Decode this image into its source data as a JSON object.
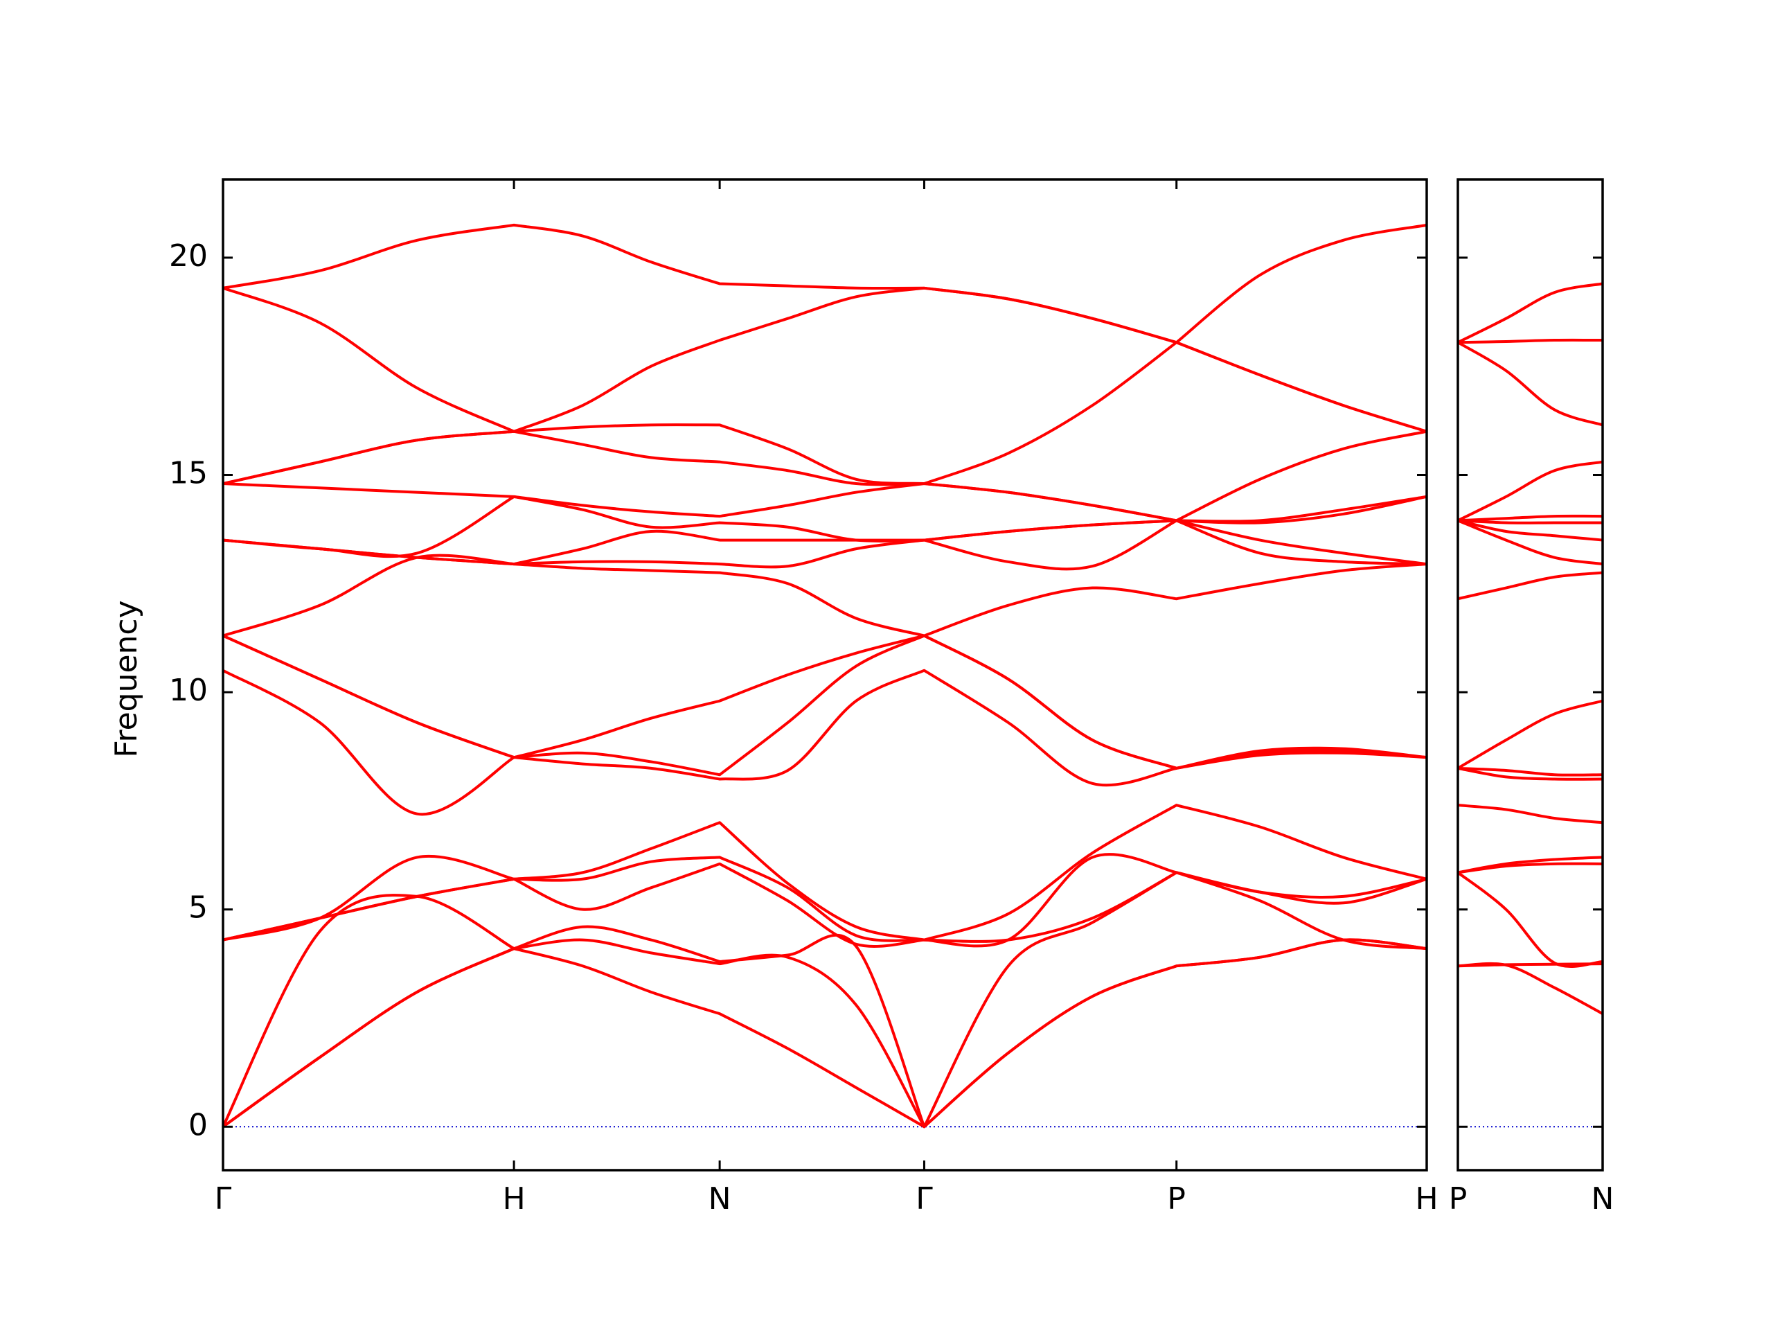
{
  "chart_data": [
    {
      "type": "line",
      "ylabel": "Frequency",
      "x": [
        0,
        0.333,
        0.667,
        1,
        1.236,
        1.471,
        1.707,
        1.941,
        2.176,
        2.41,
        2.699,
        2.988,
        3.277,
        3.564,
        3.85,
        4.137
      ],
      "xlim": [
        0,
        4.137
      ],
      "xticks": [
        {
          "value": 0,
          "label": "Γ"
        },
        {
          "value": 1,
          "label": "H"
        },
        {
          "value": 1.707,
          "label": "N"
        },
        {
          "value": 2.41,
          "label": "Γ"
        },
        {
          "value": 3.277,
          "label": "P"
        },
        {
          "value": 4.137,
          "label": "H"
        }
      ],
      "ylim": [
        -1,
        21.8
      ],
      "yticks": [
        0,
        5,
        10,
        15,
        20
      ],
      "show_ytick_labels": true,
      "series": [
        {
          "color": "#ff0000",
          "values": [
            0,
            1.6,
            3.1,
            4.1,
            3.7,
            3.1,
            2.6,
            1.8,
            0.9,
            0,
            1.7,
            3.0,
            3.7,
            3.9,
            4.3,
            4.1
          ]
        },
        {
          "color": "#ff0000",
          "values": [
            0,
            1.6,
            3.1,
            4.1,
            4.3,
            4.0,
            3.75,
            3.9,
            2.8,
            0,
            1.7,
            3.0,
            3.7,
            3.9,
            4.3,
            4.1
          ]
        },
        {
          "color": "#ff0000",
          "values": [
            0,
            4.5,
            5.3,
            4.1,
            4.6,
            4.3,
            3.8,
            3.95,
            4.15,
            0,
            3.7,
            4.7,
            5.85,
            5.2,
            4.3,
            4.1
          ]
        },
        {
          "color": "#ff0000",
          "values": [
            4.3,
            4.8,
            5.3,
            5.7,
            5.0,
            5.5,
            6.05,
            5.2,
            4.2,
            4.3,
            4.3,
            4.8,
            5.85,
            5.4,
            5.15,
            5.7
          ]
        },
        {
          "color": "#ff0000",
          "values": [
            4.3,
            4.8,
            5.3,
            5.7,
            5.7,
            6.1,
            6.2,
            5.5,
            4.4,
            4.3,
            4.3,
            6.2,
            5.85,
            5.4,
            5.3,
            5.7
          ]
        },
        {
          "color": "#ff0000",
          "values": [
            4.3,
            4.8,
            6.2,
            5.7,
            5.85,
            6.4,
            7.0,
            5.6,
            4.6,
            4.3,
            4.9,
            6.3,
            7.4,
            6.9,
            6.2,
            5.7
          ]
        },
        {
          "color": "#ff0000",
          "values": [
            10.5,
            9.3,
            7.2,
            8.5,
            8.35,
            8.25,
            8.0,
            8.2,
            9.8,
            10.5,
            9.3,
            7.9,
            8.25,
            8.55,
            8.6,
            8.5
          ]
        },
        {
          "color": "#ff0000",
          "values": [
            11.3,
            10.3,
            9.3,
            8.5,
            8.6,
            8.4,
            8.1,
            9.3,
            10.6,
            11.3,
            10.3,
            8.9,
            8.25,
            8.6,
            8.65,
            8.5
          ]
        },
        {
          "color": "#ff0000",
          "values": [
            11.3,
            10.3,
            9.3,
            8.5,
            8.9,
            9.4,
            9.8,
            10.4,
            10.9,
            11.3,
            10.3,
            8.9,
            8.25,
            8.65,
            8.7,
            8.5
          ]
        },
        {
          "color": "#ff0000",
          "values": [
            11.3,
            12.0,
            13.1,
            12.95,
            12.85,
            12.8,
            12.75,
            12.5,
            11.7,
            11.3,
            12.0,
            12.4,
            12.15,
            12.5,
            12.8,
            12.95
          ]
        },
        {
          "color": "#ff0000",
          "values": [
            13.5,
            13.3,
            13.1,
            12.95,
            13.0,
            13.0,
            12.95,
            12.9,
            13.3,
            13.5,
            13.0,
            12.9,
            13.95,
            13.2,
            13.0,
            12.95
          ]
        },
        {
          "color": "#ff0000",
          "values": [
            13.5,
            13.3,
            13.1,
            12.95,
            13.3,
            13.7,
            13.5,
            13.5,
            13.5,
            13.5,
            13.7,
            13.85,
            13.95,
            13.5,
            13.2,
            12.95
          ]
        },
        {
          "color": "#ff0000",
          "values": [
            13.5,
            13.3,
            13.2,
            14.5,
            14.2,
            13.8,
            13.9,
            13.8,
            13.5,
            13.5,
            13.7,
            13.85,
            13.95,
            13.9,
            14.1,
            14.5
          ]
        },
        {
          "color": "#ff0000",
          "values": [
            14.8,
            14.7,
            14.6,
            14.5,
            14.3,
            14.15,
            14.05,
            14.3,
            14.6,
            14.8,
            14.6,
            14.3,
            13.95,
            13.95,
            14.2,
            14.5
          ]
        },
        {
          "color": "#ff0000",
          "values": [
            14.8,
            15.3,
            15.8,
            16.0,
            15.7,
            15.4,
            15.3,
            15.1,
            14.8,
            14.8,
            14.6,
            14.3,
            13.95,
            14.9,
            15.6,
            16.0
          ]
        },
        {
          "color": "#ff0000",
          "values": [
            14.8,
            15.3,
            15.8,
            16.0,
            16.1,
            16.15,
            16.15,
            15.6,
            14.9,
            14.8,
            15.5,
            16.6,
            18.05,
            17.3,
            16.6,
            16.0
          ]
        },
        {
          "color": "#ff0000",
          "values": [
            19.3,
            18.5,
            17.0,
            16.0,
            16.6,
            17.5,
            18.1,
            18.6,
            19.1,
            19.3,
            19.05,
            18.6,
            18.05,
            17.3,
            16.6,
            16.0
          ]
        },
        {
          "color": "#ff0000",
          "values": [
            19.3,
            19.7,
            20.4,
            20.75,
            20.5,
            19.9,
            19.4,
            19.35,
            19.3,
            19.3,
            19.05,
            18.6,
            18.05,
            19.6,
            20.4,
            20.75
          ]
        }
      ]
    },
    {
      "type": "line",
      "x": [
        0,
        0.165,
        0.331,
        0.496
      ],
      "xlim": [
        0,
        0.496
      ],
      "xticks": [
        {
          "value": 0,
          "label": "P"
        },
        {
          "value": 0.496,
          "label": "N"
        }
      ],
      "ylim": [
        -1,
        21.8
      ],
      "yticks": [
        0,
        5,
        10,
        15,
        20
      ],
      "show_ytick_labels": false,
      "series": [
        {
          "color": "#ff0000",
          "values": [
            3.7,
            3.72,
            3.2,
            2.6
          ]
        },
        {
          "color": "#ff0000",
          "values": [
            3.7,
            3.73,
            3.74,
            3.75
          ]
        },
        {
          "color": "#ff0000",
          "values": [
            5.85,
            5.0,
            3.77,
            3.8
          ]
        },
        {
          "color": "#ff0000",
          "values": [
            5.85,
            6.0,
            6.05,
            6.05
          ]
        },
        {
          "color": "#ff0000",
          "values": [
            5.85,
            6.05,
            6.15,
            6.2
          ]
        },
        {
          "color": "#ff0000",
          "values": [
            7.4,
            7.3,
            7.1,
            7.0
          ]
        },
        {
          "color": "#ff0000",
          "values": [
            8.25,
            8.05,
            8.0,
            8.0
          ]
        },
        {
          "color": "#ff0000",
          "values": [
            8.25,
            8.2,
            8.1,
            8.1
          ]
        },
        {
          "color": "#ff0000",
          "values": [
            8.25,
            8.9,
            9.5,
            9.8
          ]
        },
        {
          "color": "#ff0000",
          "values": [
            12.15,
            12.4,
            12.65,
            12.75
          ]
        },
        {
          "color": "#ff0000",
          "values": [
            13.95,
            13.5,
            13.1,
            12.95
          ]
        },
        {
          "color": "#ff0000",
          "values": [
            13.95,
            13.7,
            13.6,
            13.5
          ]
        },
        {
          "color": "#ff0000",
          "values": [
            13.95,
            13.9,
            13.9,
            13.9
          ]
        },
        {
          "color": "#ff0000",
          "values": [
            13.95,
            14.0,
            14.05,
            14.05
          ]
        },
        {
          "color": "#ff0000",
          "values": [
            13.95,
            14.5,
            15.1,
            15.3
          ]
        },
        {
          "color": "#ff0000",
          "values": [
            18.05,
            17.4,
            16.5,
            16.15
          ]
        },
        {
          "color": "#ff0000",
          "values": [
            18.05,
            18.07,
            18.1,
            18.1
          ]
        },
        {
          "color": "#ff0000",
          "values": [
            18.05,
            18.6,
            19.2,
            19.4
          ]
        }
      ]
    }
  ]
}
